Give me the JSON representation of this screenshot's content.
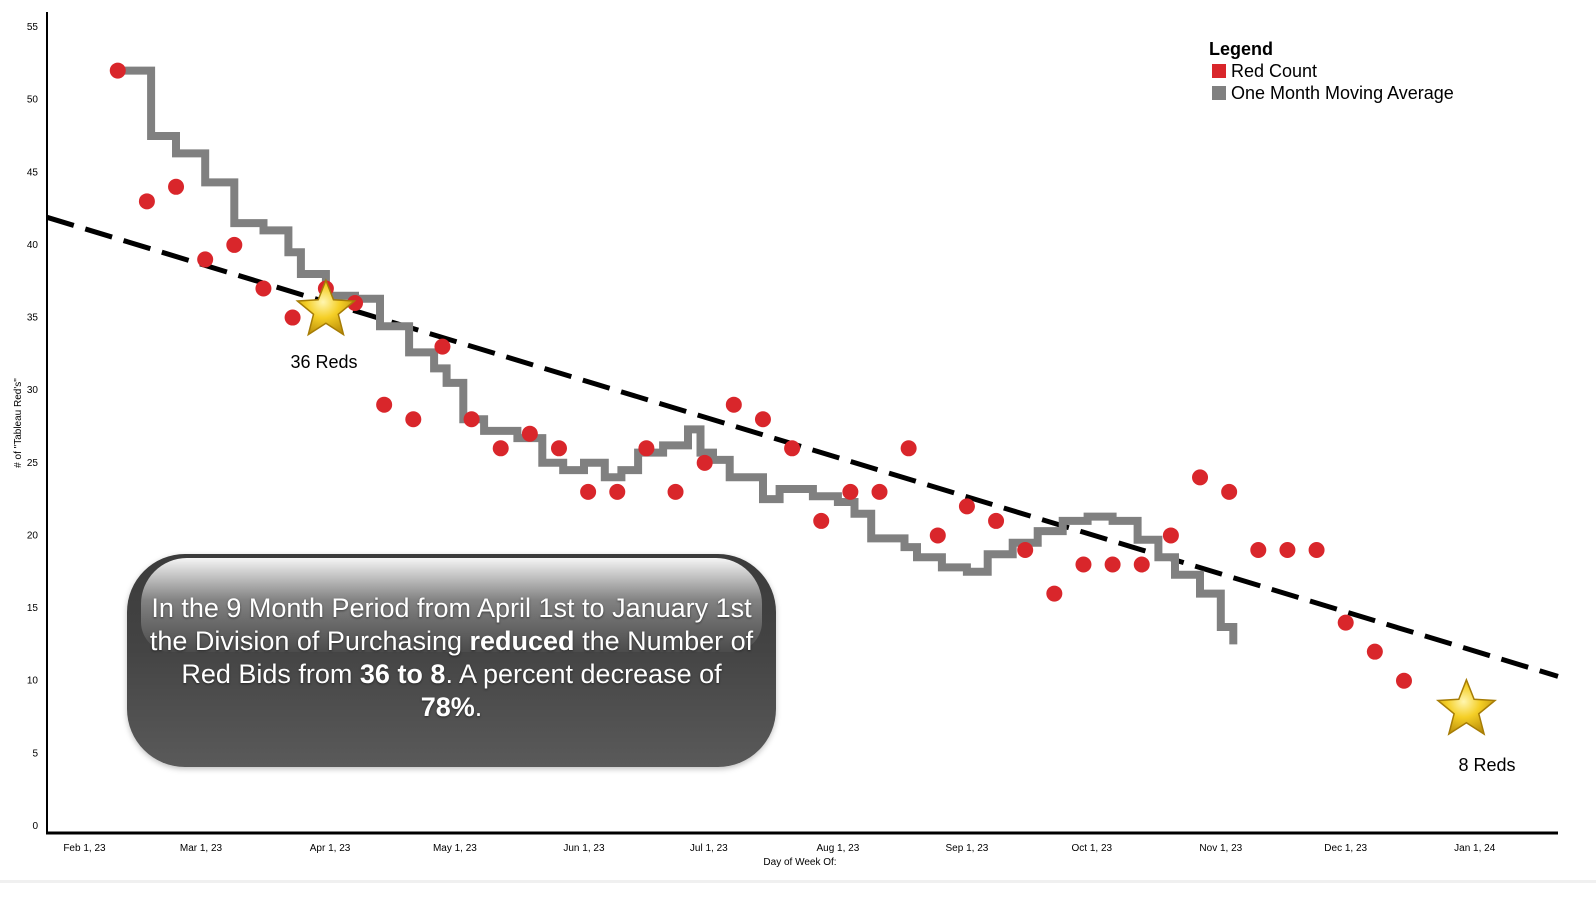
{
  "colors": {
    "red": "#d9262b",
    "moving_average": "#808080",
    "trend": "#000000",
    "callout_bg": "#4a4a4a",
    "star": "#f2c315"
  },
  "legend": {
    "title": "Legend",
    "items": [
      {
        "label": "Red Count",
        "color": "#d9262b"
      },
      {
        "label": "One Month Moving Average",
        "color": "#808080"
      }
    ]
  },
  "callout": {
    "part1": "In the 9 Month Period from April 1st to January 1st the Division of Purchasing ",
    "bold1": "reduced",
    "part2": " the Number of Red Bids from ",
    "bold2": "36 to 8",
    "part3": ". A percent decrease of ",
    "bold3": "78%",
    "part4": "."
  },
  "annotations": {
    "start": {
      "label": "36 Reds",
      "date": "2023-03-31",
      "value": 35.5
    },
    "end": {
      "label": "8 Reds",
      "date": "2023-12-30",
      "value": 8.0
    }
  },
  "chart_data": {
    "type": "scatter",
    "xlabel": "Day of Week Of:",
    "ylabel": "# of \"Tableau Red's\"",
    "x_tick_labels": [
      "Feb 1, 23",
      "Mar 1, 23",
      "Apr 1, 23",
      "May 1, 23",
      "Jun 1, 23",
      "Jul 1, 23",
      "Aug 1, 23",
      "Sep 1, 23",
      "Oct 1, 23",
      "Nov 1, 23",
      "Dec 1, 23",
      "Jan 1, 24"
    ],
    "x_tick_dates": [
      "2023-02-01",
      "2023-03-01",
      "2023-04-01",
      "2023-05-01",
      "2023-06-01",
      "2023-07-01",
      "2023-08-01",
      "2023-09-01",
      "2023-10-01",
      "2023-11-01",
      "2023-12-01",
      "2024-01-01"
    ],
    "xlim": [
      "2023-01-23",
      "2024-01-21"
    ],
    "ylim": [
      0,
      55
    ],
    "y_ticks": [
      0,
      5,
      10,
      15,
      20,
      25,
      30,
      35,
      40,
      45,
      50,
      55
    ],
    "grid": false,
    "legend_position": "top-right",
    "series": [
      {
        "name": "Red Count",
        "mark": "circle",
        "points": [
          [
            "2023-02-09",
            52
          ],
          [
            "2023-02-16",
            43
          ],
          [
            "2023-02-23",
            44
          ],
          [
            "2023-03-02",
            39
          ],
          [
            "2023-03-09",
            40
          ],
          [
            "2023-03-16",
            37
          ],
          [
            "2023-03-23",
            35
          ],
          [
            "2023-03-31",
            37
          ],
          [
            "2023-04-07",
            36
          ],
          [
            "2023-04-14",
            29
          ],
          [
            "2023-04-21",
            28
          ],
          [
            "2023-04-28",
            33
          ],
          [
            "2023-05-05",
            28
          ],
          [
            "2023-05-12",
            26
          ],
          [
            "2023-05-19",
            27
          ],
          [
            "2023-05-26",
            26
          ],
          [
            "2023-06-02",
            23
          ],
          [
            "2023-06-09",
            23
          ],
          [
            "2023-06-16",
            26
          ],
          [
            "2023-06-23",
            23
          ],
          [
            "2023-06-30",
            25
          ],
          [
            "2023-07-07",
            29
          ],
          [
            "2023-07-14",
            28
          ],
          [
            "2023-07-21",
            26
          ],
          [
            "2023-07-28",
            21
          ],
          [
            "2023-08-04",
            23
          ],
          [
            "2023-08-11",
            23
          ],
          [
            "2023-08-18",
            26
          ],
          [
            "2023-08-25",
            20
          ],
          [
            "2023-09-01",
            22
          ],
          [
            "2023-09-08",
            21
          ],
          [
            "2023-09-15",
            19
          ],
          [
            "2023-09-22",
            16
          ],
          [
            "2023-09-29",
            18
          ],
          [
            "2023-10-06",
            18
          ],
          [
            "2023-10-13",
            18
          ],
          [
            "2023-10-20",
            20
          ],
          [
            "2023-10-27",
            24
          ],
          [
            "2023-11-03",
            23
          ],
          [
            "2023-11-10",
            19
          ],
          [
            "2023-11-17",
            19
          ],
          [
            "2023-11-24",
            19
          ],
          [
            "2023-12-01",
            14
          ],
          [
            "2023-12-08",
            12
          ],
          [
            "2023-12-15",
            10
          ]
        ]
      },
      {
        "name": "One Month Moving Average",
        "mark": "step-line",
        "points": [
          [
            "2023-02-09",
            52.0
          ],
          [
            "2023-02-16",
            52.0
          ],
          [
            "2023-02-17",
            47.5
          ],
          [
            "2023-02-23",
            46.3
          ],
          [
            "2023-03-02",
            44.3
          ],
          [
            "2023-03-09",
            41.5
          ],
          [
            "2023-03-16",
            41.0
          ],
          [
            "2023-03-22",
            39.5
          ],
          [
            "2023-03-25",
            38.0
          ],
          [
            "2023-03-31",
            36.5
          ],
          [
            "2023-04-07",
            36.3
          ],
          [
            "2023-04-13",
            34.4
          ],
          [
            "2023-04-20",
            32.6
          ],
          [
            "2023-04-26",
            31.5
          ],
          [
            "2023-04-29",
            30.5
          ],
          [
            "2023-05-03",
            28.0
          ],
          [
            "2023-05-08",
            27.2
          ],
          [
            "2023-05-16",
            26.7
          ],
          [
            "2023-05-22",
            25.0
          ],
          [
            "2023-05-27",
            24.5
          ],
          [
            "2023-06-01",
            25.0
          ],
          [
            "2023-06-06",
            24.0
          ],
          [
            "2023-06-10",
            24.5
          ],
          [
            "2023-06-14",
            25.7
          ],
          [
            "2023-06-20",
            26.2
          ],
          [
            "2023-06-26",
            27.3
          ],
          [
            "2023-06-29",
            25.7
          ],
          [
            "2023-07-02",
            25.2
          ],
          [
            "2023-07-06",
            24.0
          ],
          [
            "2023-07-14",
            22.5
          ],
          [
            "2023-07-18",
            23.2
          ],
          [
            "2023-07-26",
            22.7
          ],
          [
            "2023-08-01",
            22.3
          ],
          [
            "2023-08-05",
            21.5
          ],
          [
            "2023-08-09",
            19.8
          ],
          [
            "2023-08-17",
            19.2
          ],
          [
            "2023-08-20",
            18.5
          ],
          [
            "2023-08-26",
            17.8
          ],
          [
            "2023-09-01",
            17.5
          ],
          [
            "2023-09-06",
            18.7
          ],
          [
            "2023-09-12",
            19.5
          ],
          [
            "2023-09-18",
            20.3
          ],
          [
            "2023-09-24",
            21.0
          ],
          [
            "2023-09-30",
            21.3
          ],
          [
            "2023-10-06",
            21.0
          ],
          [
            "2023-10-12",
            19.7
          ],
          [
            "2023-10-17",
            18.5
          ],
          [
            "2023-10-21",
            17.3
          ],
          [
            "2023-10-27",
            16.0
          ],
          [
            "2023-11-01",
            13.7
          ],
          [
            "2023-11-04",
            12.5
          ]
        ]
      },
      {
        "name": "Trend",
        "mark": "dashed-line",
        "points": [
          [
            "2023-01-23",
            41.9
          ],
          [
            "2024-01-21",
            10.3
          ]
        ]
      }
    ]
  }
}
